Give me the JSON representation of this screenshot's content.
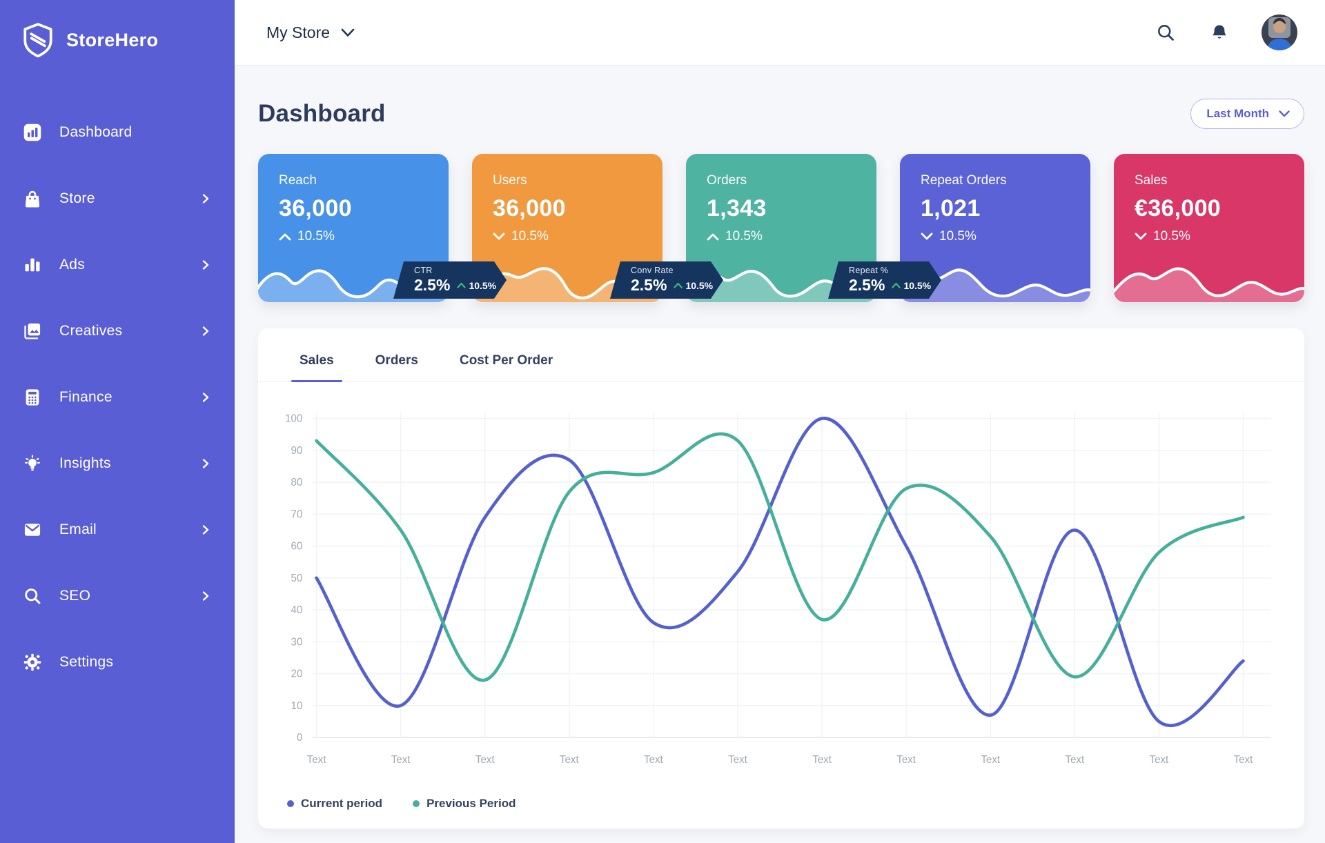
{
  "app": {
    "name": "StoreHero"
  },
  "topbar": {
    "store_selector": "My Store"
  },
  "sidebar": {
    "items": [
      {
        "label": "Dashboard",
        "icon": "dashboard-icon",
        "chevron": false,
        "active": true
      },
      {
        "label": "Store",
        "icon": "store-icon",
        "chevron": true
      },
      {
        "label": "Ads",
        "icon": "ads-icon",
        "chevron": true
      },
      {
        "label": "Creatives",
        "icon": "creatives-icon",
        "chevron": true
      },
      {
        "label": "Finance",
        "icon": "finance-icon",
        "chevron": true
      },
      {
        "label": "Insights",
        "icon": "insights-icon",
        "chevron": true
      },
      {
        "label": "Email",
        "icon": "email-icon",
        "chevron": true
      },
      {
        "label": "SEO",
        "icon": "seo-icon",
        "chevron": true
      },
      {
        "label": "Settings",
        "icon": "settings-icon",
        "chevron": false
      }
    ]
  },
  "header": {
    "title": "Dashboard",
    "period_selector": "Last Month"
  },
  "stat_cards": [
    {
      "label": "Reach",
      "value": "36,000",
      "trend": "10.5%",
      "trend_direction": "up",
      "color": "#4792e8"
    },
    {
      "label": "Users",
      "value": "36,000",
      "trend": "10.5%",
      "trend_direction": "down",
      "color": "#f0993f"
    },
    {
      "label": "Orders",
      "value": "1,343",
      "trend": "10.5%",
      "trend_direction": "up",
      "color": "#4fb3a2"
    },
    {
      "label": "Repeat Orders",
      "value": "1,021",
      "trend": "10.5%",
      "trend_direction": "down",
      "color": "#5b62d6"
    },
    {
      "label": "Sales",
      "value": "€36,000",
      "trend": "10.5%",
      "trend_direction": "down",
      "color": "#d93767"
    }
  ],
  "metric_badges": [
    {
      "label": "CTR",
      "value": "2.5%",
      "trend": "10.5%",
      "trend_direction": "up"
    },
    {
      "label": "Conv Rate",
      "value": "2.5%",
      "trend": "10.5%",
      "trend_direction": "up"
    },
    {
      "label": "Repeat %",
      "value": "2.5%",
      "trend": "10.5%",
      "trend_direction": "up"
    }
  ],
  "chart_panel": {
    "tabs": [
      {
        "label": "Sales",
        "active": true
      },
      {
        "label": "Orders",
        "active": false
      },
      {
        "label": "Cost Per Order",
        "active": false
      }
    ]
  },
  "chart_data": {
    "type": "line",
    "categories": [
      "Text",
      "Text",
      "Text",
      "Text",
      "Text",
      "Text",
      "Text",
      "Text",
      "Text",
      "Text",
      "Text",
      "Text"
    ],
    "series": [
      {
        "name": "Current period",
        "color": "#5560cf",
        "values": [
          50,
          10,
          69,
          87,
          36,
          52,
          100,
          60,
          7,
          65,
          5,
          24
        ]
      },
      {
        "name": "Previous Period",
        "color": "#45b099",
        "values": [
          93,
          65,
          18,
          77,
          83,
          93,
          37,
          78,
          63,
          19,
          58,
          69
        ]
      }
    ],
    "title": "",
    "xlabel": "",
    "ylabel": "",
    "ylim": [
      0,
      100
    ],
    "ytick_step": 10,
    "grid": true,
    "legend_position": "bottom"
  },
  "colors": {
    "sidebar_bg": "#5a5ed4",
    "accent": "#5a5ed4",
    "badge_bg": "#16355e",
    "trend_up_green": "#3cb27f",
    "page_bg": "#f6f7fa",
    "line_current": "#5560cf",
    "line_previous": "#45b099"
  }
}
